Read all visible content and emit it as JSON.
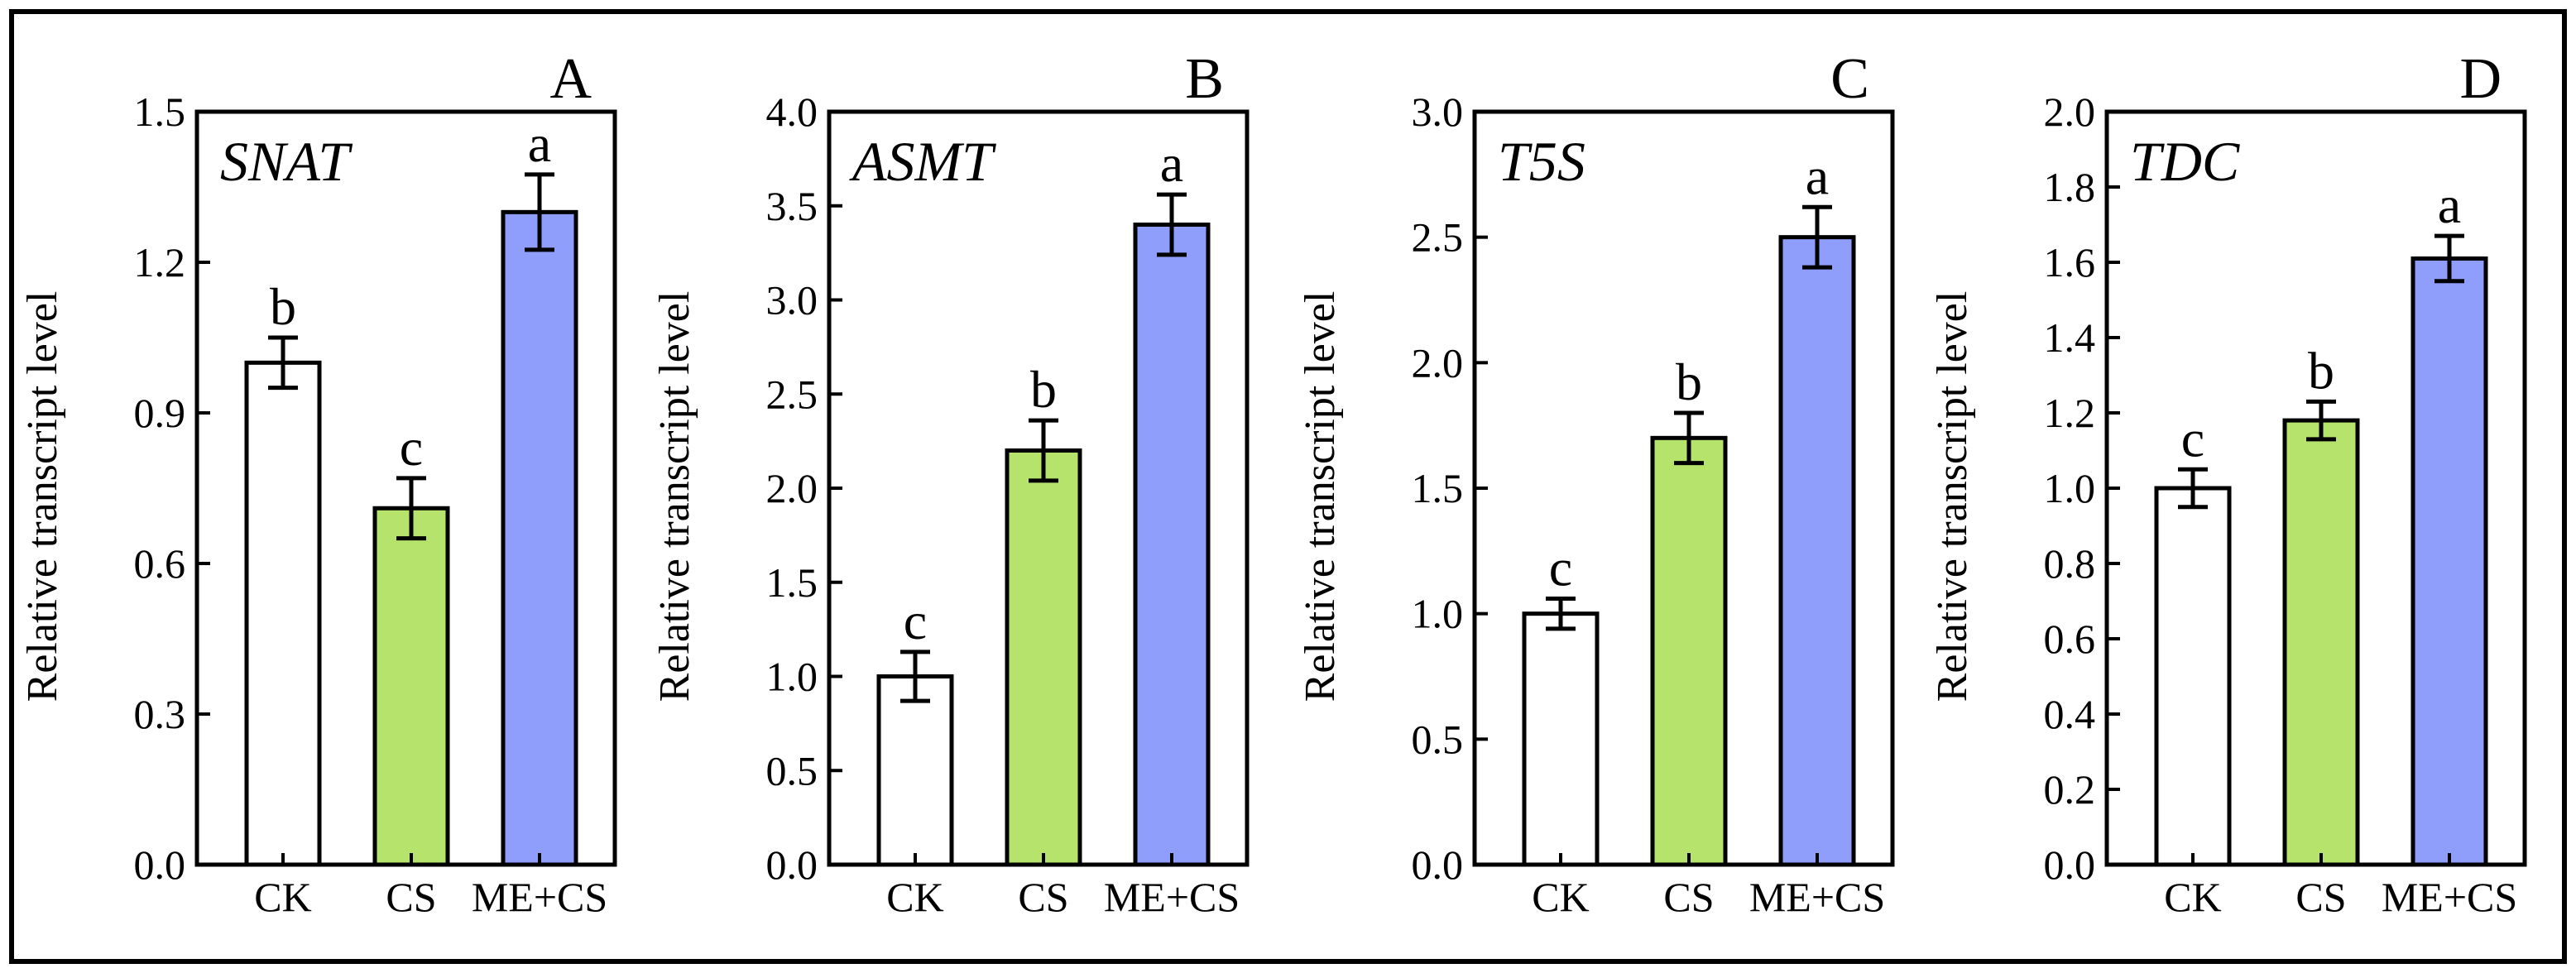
{
  "chart_data": [
    {
      "type": "bar",
      "panel_letter": "A",
      "gene": "SNAT",
      "ylabel": "Relative transcript level",
      "categories": [
        "CK",
        "CS",
        "ME+CS"
      ],
      "values": [
        1.0,
        0.71,
        1.3
      ],
      "errors": [
        0.05,
        0.06,
        0.075
      ],
      "significance": [
        "b",
        "c",
        "a"
      ],
      "ylim": [
        0,
        1.5
      ],
      "yticks": [
        "0.0",
        "0.3",
        "0.6",
        "0.9",
        "1.2",
        "1.5"
      ],
      "bar_colors": [
        "#ffffff",
        "#b5e36b",
        "#8f9dfb"
      ]
    },
    {
      "type": "bar",
      "panel_letter": "B",
      "gene": "ASMT",
      "ylabel": "Relative transcript level",
      "categories": [
        "CK",
        "CS",
        "ME+CS"
      ],
      "values": [
        1.0,
        2.2,
        3.4
      ],
      "errors": [
        0.13,
        0.16,
        0.16
      ],
      "significance": [
        "c",
        "b",
        "a"
      ],
      "ylim": [
        0,
        4.0
      ],
      "yticks": [
        "0.0",
        "0.5",
        "1.0",
        "1.5",
        "2.0",
        "2.5",
        "3.0",
        "3.5",
        "4.0"
      ],
      "bar_colors": [
        "#ffffff",
        "#b5e36b",
        "#8f9dfb"
      ]
    },
    {
      "type": "bar",
      "panel_letter": "C",
      "gene": "T5S",
      "ylabel": "Relative transcript level",
      "categories": [
        "CK",
        "CS",
        "ME+CS"
      ],
      "values": [
        1.0,
        1.7,
        2.5
      ],
      "errors": [
        0.06,
        0.1,
        0.12
      ],
      "significance": [
        "c",
        "b",
        "a"
      ],
      "ylim": [
        0,
        3.0
      ],
      "yticks": [
        "0.0",
        "0.5",
        "1.0",
        "1.5",
        "2.0",
        "2.5",
        "3.0"
      ],
      "bar_colors": [
        "#ffffff",
        "#b5e36b",
        "#8f9dfb"
      ]
    },
    {
      "type": "bar",
      "panel_letter": "D",
      "gene": "TDC",
      "ylabel": "Relative transcript level",
      "categories": [
        "CK",
        "CS",
        "ME+CS"
      ],
      "values": [
        1.0,
        1.18,
        1.61
      ],
      "errors": [
        0.05,
        0.05,
        0.06
      ],
      "significance": [
        "c",
        "b",
        "a"
      ],
      "ylim": [
        0,
        2.0
      ],
      "yticks": [
        "0.0",
        "0.2",
        "0.4",
        "0.6",
        "0.8",
        "1.0",
        "1.2",
        "1.4",
        "1.6",
        "1.8",
        "2.0"
      ],
      "bar_colors": [
        "#ffffff",
        "#b5e36b",
        "#8f9dfb"
      ]
    }
  ]
}
